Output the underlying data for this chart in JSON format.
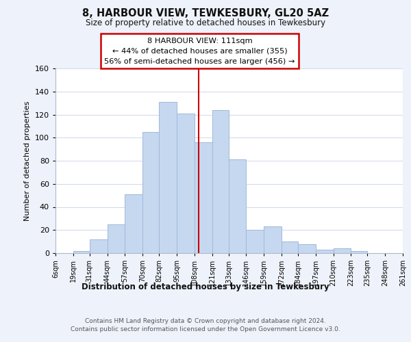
{
  "title": "8, HARBOUR VIEW, TEWKESBURY, GL20 5AZ",
  "subtitle": "Size of property relative to detached houses in Tewkesbury",
  "xlabel": "Distribution of detached houses by size in Tewkesbury",
  "ylabel": "Number of detached properties",
  "bar_edges": [
    6,
    19,
    31,
    44,
    57,
    70,
    82,
    95,
    108,
    121,
    133,
    146,
    159,
    172,
    184,
    197,
    210,
    223,
    235,
    248,
    261
  ],
  "bar_heights": [
    0,
    2,
    12,
    25,
    51,
    105,
    131,
    121,
    96,
    124,
    81,
    20,
    23,
    10,
    8,
    3,
    4,
    2,
    0,
    0
  ],
  "bar_color": "#c5d8f0",
  "bar_edgecolor": "#a0b8d8",
  "vline_x": 111,
  "vline_color": "#cc0000",
  "annotation_line1": "8 HARBOUR VIEW: 111sqm",
  "annotation_line2": "← 44% of detached houses are smaller (355)",
  "annotation_line3": "56% of semi-detached houses are larger (456) →",
  "annotation_box_edgecolor": "#cc0000",
  "annotation_box_facecolor": "#ffffff",
  "xlim": [
    6,
    261
  ],
  "ylim": [
    0,
    160
  ],
  "yticks": [
    0,
    20,
    40,
    60,
    80,
    100,
    120,
    140,
    160
  ],
  "tick_labels": [
    "6sqm",
    "19sqm",
    "31sqm",
    "44sqm",
    "57sqm",
    "70sqm",
    "82sqm",
    "95sqm",
    "108sqm",
    "121sqm",
    "133sqm",
    "146sqm",
    "159sqm",
    "172sqm",
    "184sqm",
    "197sqm",
    "210sqm",
    "223sqm",
    "235sqm",
    "248sqm",
    "261sqm"
  ],
  "tick_positions": [
    6,
    19,
    31,
    44,
    57,
    70,
    82,
    95,
    108,
    121,
    133,
    146,
    159,
    172,
    184,
    197,
    210,
    223,
    235,
    248,
    261
  ],
  "footer_line1": "Contains HM Land Registry data © Crown copyright and database right 2024.",
  "footer_line2": "Contains public sector information licensed under the Open Government Licence v3.0.",
  "bg_color": "#eef2fa",
  "plot_bg_color": "#ffffff",
  "grid_color": "#d0d8e8"
}
